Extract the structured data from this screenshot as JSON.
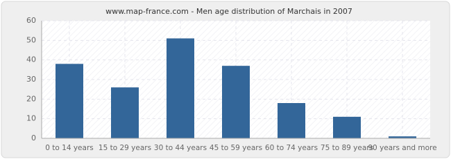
{
  "chart_data": {
    "type": "bar",
    "title": "www.map-france.com - Men age distribution of Marchais in 2007",
    "categories": [
      "0 to 14 years",
      "15 to 29 years",
      "30 to 44 years",
      "45 to 59 years",
      "60 to 74 years",
      "75 to 89 years",
      "90 years and more"
    ],
    "values": [
      38,
      26,
      51,
      37,
      18,
      11,
      1
    ],
    "color": "#336699",
    "ylim": [
      0,
      60
    ],
    "yticks": [
      0,
      10,
      20,
      30,
      40,
      50,
      60
    ],
    "grid": true
  }
}
